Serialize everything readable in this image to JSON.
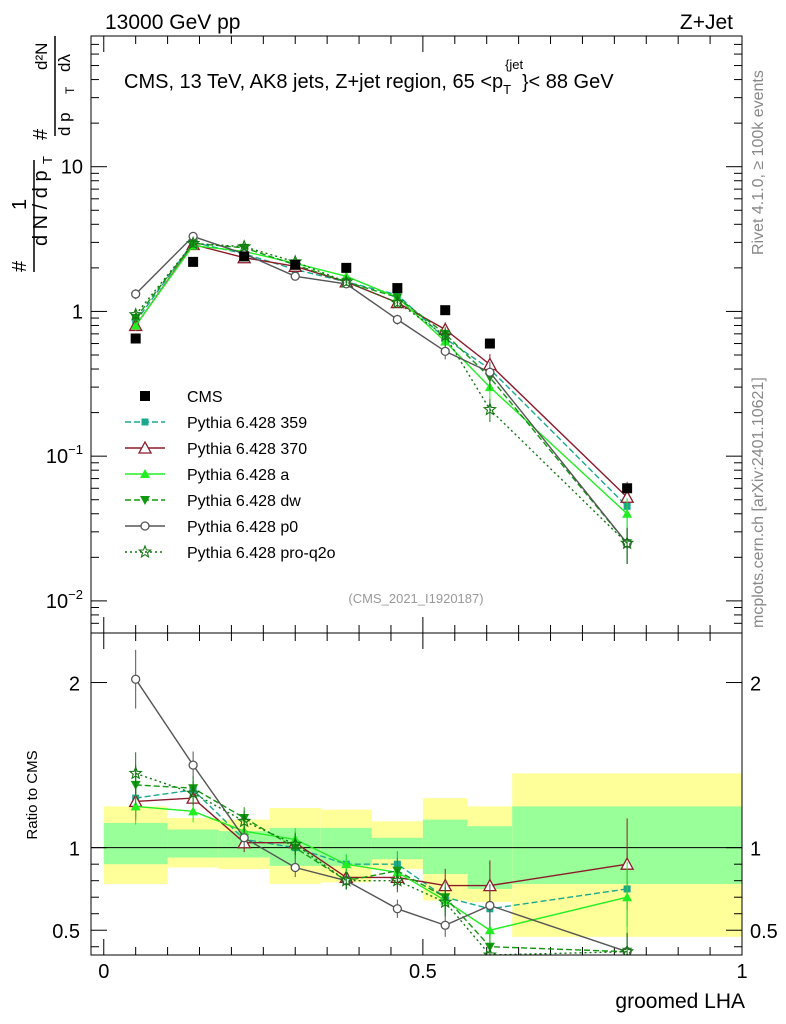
{
  "header": {
    "left": "13000 GeV pp",
    "right": "Z+Jet"
  },
  "side_labels": {
    "rivet": "Rivet 4.1.0, ≥ 100k events",
    "mcplots": "mcplots.cern.ch [arXiv:2401.10621]"
  },
  "colors": {
    "cms": "#000000",
    "p359": "#1aa98f",
    "p370": "#8b1a2a",
    "pa": "#22ee22",
    "pdw": "#119911",
    "pp0": "#555555",
    "pq2o": "#117711",
    "band_outer": "#ffff99",
    "band_inner": "#99ff99"
  },
  "chart_data": [
    {
      "type": "scatter",
      "title": "CMS, 13 TeV, AK8 jets, Z+jet region, 65 <p_T^{jet}< 88 GeV",
      "title_parts": {
        "main": "CMS, 13 TeV, AK8 jets, Z+jet region, 65 <p",
        "sub": "T",
        "sup": "{jet",
        "sup_close": "}",
        "tail": "< 88 GeV"
      },
      "watermark": "(CMS_2021_I1920187)",
      "ylabel": "1/N dN/dp_T d²N/dp_T dλ",
      "ylabel_parts": {
        "hash": "#",
        "one": "1",
        "dN": "d N / d p",
        "T": "T",
        "d2N": "d²N",
        "dpT": "d p",
        "dl": "dλ"
      },
      "yscale": "log",
      "ylim": [
        0.006,
        80
      ],
      "xlim": [
        -0.02,
        1.0
      ],
      "yticks": [
        {
          "value": 0.01,
          "label": "10",
          "sup": "−2"
        },
        {
          "value": 0.1,
          "label": "10",
          "sup": "−1"
        },
        {
          "value": 1,
          "label": "1",
          "sup": ""
        },
        {
          "value": 10,
          "label": "10",
          "sup": ""
        }
      ],
      "x": [
        0.05,
        0.14,
        0.22,
        0.3,
        0.38,
        0.46,
        0.535,
        0.605,
        0.82
      ],
      "cms": [
        0.65,
        2.2,
        2.4,
        2.1,
        2.0,
        1.45,
        1.02,
        0.6,
        0.06
      ],
      "series": [
        {
          "name": "Pythia 6.428 359",
          "key": "p359",
          "marker": "square",
          "dash": "6,3",
          "values": [
            0.85,
            3.0,
            2.5,
            1.95,
            1.6,
            1.3,
            0.65,
            0.4,
            0.045
          ]
        },
        {
          "name": "Pythia 6.428 370",
          "key": "p370",
          "marker": "triangle-open",
          "dash": "",
          "values": [
            0.8,
            2.9,
            2.35,
            2.05,
            1.6,
            1.15,
            0.75,
            0.43,
            0.052
          ]
        },
        {
          "name": "Pythia 6.428 a",
          "key": "pa",
          "marker": "triangle",
          "dash": "",
          "values": [
            0.8,
            2.85,
            2.6,
            2.15,
            1.75,
            1.25,
            0.62,
            0.3,
            0.04
          ]
        },
        {
          "name": "Pythia 6.428 dw",
          "key": "pdw",
          "marker": "triangle-down",
          "dash": "6,3",
          "values": [
            0.9,
            2.95,
            2.75,
            2.1,
            1.6,
            1.25,
            0.7,
            0.35,
            0.025
          ]
        },
        {
          "name": "Pythia 6.428 p0",
          "key": "pp0",
          "marker": "circle-open",
          "dash": "",
          "values": [
            1.32,
            3.3,
            2.5,
            1.75,
            1.55,
            0.88,
            0.53,
            0.38,
            0.025
          ]
        },
        {
          "name": "Pythia 6.428 pro-q2o",
          "key": "pq2o",
          "marker": "star",
          "dash": "2,3",
          "values": [
            0.95,
            2.95,
            2.8,
            2.2,
            1.6,
            1.15,
            0.68,
            0.21,
            0.025
          ]
        }
      ]
    },
    {
      "type": "scatter",
      "ylabel": "Ratio to CMS",
      "xlabel": "groomed LHA",
      "ylim": [
        0.35,
        2.3
      ],
      "xlim": [
        -0.02,
        1.0
      ],
      "yticks": [
        0.5,
        1,
        2
      ],
      "xticks": [
        {
          "value": 0,
          "label": "0"
        },
        {
          "value": 0.5,
          "label": "0.5"
        },
        {
          "value": 1,
          "label": "1"
        }
      ],
      "bins": [
        {
          "lo": 0.0,
          "hi": 0.1,
          "outer": [
            0.78,
            1.25
          ],
          "inner": [
            0.9,
            1.15
          ]
        },
        {
          "lo": 0.1,
          "hi": 0.18,
          "outer": [
            0.88,
            1.18
          ],
          "inner": [
            0.94,
            1.11
          ]
        },
        {
          "lo": 0.18,
          "hi": 0.26,
          "outer": [
            0.87,
            1.17
          ],
          "inner": [
            0.94,
            1.1
          ]
        },
        {
          "lo": 0.26,
          "hi": 0.34,
          "outer": [
            0.78,
            1.24
          ],
          "inner": [
            0.89,
            1.12
          ]
        },
        {
          "lo": 0.34,
          "hi": 0.42,
          "outer": [
            0.79,
            1.23
          ],
          "inner": [
            0.89,
            1.12
          ]
        },
        {
          "lo": 0.42,
          "hi": 0.5,
          "outer": [
            0.87,
            1.16
          ],
          "inner": [
            0.93,
            1.06
          ]
        },
        {
          "lo": 0.5,
          "hi": 0.57,
          "outer": [
            0.68,
            1.3
          ],
          "inner": [
            0.84,
            1.17
          ]
        },
        {
          "lo": 0.57,
          "hi": 0.64,
          "outer": [
            0.67,
            1.25
          ],
          "inner": [
            0.75,
            1.13
          ]
        },
        {
          "lo": 0.64,
          "hi": 1.0,
          "outer": [
            0.46,
            1.45
          ],
          "inner": [
            0.78,
            1.25
          ]
        }
      ],
      "series": [
        {
          "key": "p359",
          "values": [
            1.3,
            1.35,
            1.05,
            1.0,
            0.9,
            0.9,
            0.7,
            0.63,
            0.75
          ]
        },
        {
          "key": "p370",
          "values": [
            1.28,
            1.3,
            1.03,
            1.03,
            0.82,
            0.82,
            0.77,
            0.77,
            0.9
          ]
        },
        {
          "key": "pa",
          "values": [
            1.25,
            1.22,
            1.1,
            1.05,
            0.9,
            0.85,
            0.68,
            0.5,
            0.7
          ]
        },
        {
          "key": "pdw",
          "values": [
            1.38,
            1.36,
            1.18,
            1.0,
            0.8,
            0.86,
            0.7,
            0.4,
            0.37
          ]
        },
        {
          "key": "pp0",
          "values": [
            2.02,
            1.5,
            1.06,
            0.88,
            0.8,
            0.63,
            0.53,
            0.65,
            0.37
          ]
        },
        {
          "key": "pq2o",
          "values": [
            1.45,
            1.33,
            1.16,
            1.02,
            0.8,
            0.8,
            0.67,
            0.35,
            0.37
          ]
        }
      ]
    }
  ]
}
